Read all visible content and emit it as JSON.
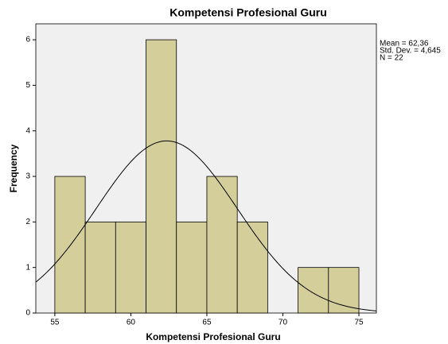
{
  "chart_data": {
    "type": "histogram",
    "title": "Kompetensi Profesional Guru",
    "xlabel": "Kompetensi Profesional Guru",
    "ylabel": "Frequency",
    "bins": [
      55,
      57,
      59,
      61,
      63,
      65,
      67,
      69,
      71,
      73,
      75
    ],
    "values": [
      3,
      2,
      2,
      6,
      2,
      3,
      2,
      0,
      1,
      1
    ],
    "color": "#d4cf9a",
    "xlim": [
      53.75,
      76.15
    ],
    "xticks": [
      55,
      60,
      65,
      70,
      75
    ],
    "ylim": [
      0,
      6.35
    ],
    "yticks": [
      0,
      1,
      2,
      3,
      4,
      5,
      6
    ],
    "grid": false,
    "annotations": [
      "Mean = 62,36",
      "Std. Dev. = 4,645",
      "N = 22"
    ],
    "normal_curve": {
      "mean": 62.36,
      "std": 4.645,
      "n": 22
    }
  }
}
